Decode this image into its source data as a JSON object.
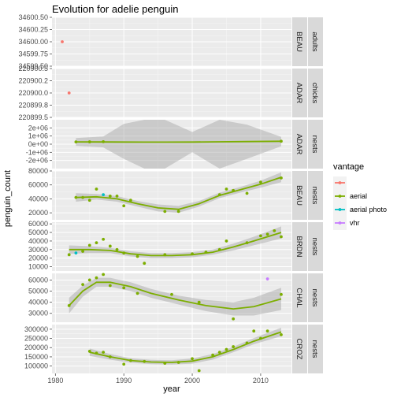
{
  "chart_data": {
    "type": "scatter",
    "title": "Evolution for adelie penguin",
    "xlabel": "year",
    "ylabel": "penguin_count",
    "xlim": [
      1979.5,
      2014.5
    ],
    "x_ticks": [
      1980,
      1990,
      2000,
      2010
    ],
    "legend": {
      "title": "vantage",
      "placement": "right",
      "entries": [
        {
          "label": "",
          "color": "#F8766D"
        },
        {
          "label": "aerial",
          "color": "#7CAE00"
        },
        {
          "label": "aerial photo",
          "color": "#00BFC4"
        },
        {
          "label": "vhr",
          "color": "#C77CFF"
        }
      ]
    },
    "panels": [
      {
        "site": "BEAU",
        "count_type": "adults",
        "ylim": [
          34599.5,
          34600.5
        ],
        "y_ticks": [
          "34599.50",
          "34599.75",
          "34600.00",
          "34600.25",
          "34600.50"
        ],
        "y_tick_values": [
          34599.5,
          34599.75,
          34600.0,
          34600.25,
          34600.5
        ],
        "points": [
          {
            "x": 1981,
            "y": 34600,
            "vantage": "NA"
          }
        ],
        "smooth": null
      },
      {
        "site": "ADAR",
        "count_type": "chicks",
        "ylim": [
          220899.5,
          220900.5
        ],
        "y_ticks": [
          "220899.5",
          "220899.8",
          "220900.0",
          "220900.2",
          "220900.5"
        ],
        "y_tick_values": [
          220899.5,
          220899.75,
          220900.0,
          220900.25,
          220900.5
        ],
        "points": [
          {
            "x": 1982,
            "y": 220900,
            "vantage": "NA"
          }
        ],
        "smooth": null
      },
      {
        "site": "ADAR",
        "count_type": "nests",
        "ylim": [
          -3000000,
          3000000
        ],
        "y_ticks": [
          "-2e+06",
          "-1e+06",
          "0e+00",
          "1e+06",
          "2e+06"
        ],
        "y_tick_values": [
          -2000000,
          -1000000,
          0,
          1000000,
          2000000
        ],
        "points": [
          {
            "x": 1983,
            "y": 280000,
            "vantage": "aerial"
          },
          {
            "x": 1985,
            "y": 282000,
            "vantage": "aerial"
          },
          {
            "x": 1987,
            "y": 300000,
            "vantage": "aerial"
          },
          {
            "x": 2013,
            "y": 360000,
            "vantage": "aerial"
          }
        ],
        "smooth": {
          "x": [
            1983,
            1987,
            1990,
            1993,
            1996,
            2000,
            2004,
            2008,
            2013
          ],
          "y": [
            280000,
            275000,
            265000,
            255000,
            250000,
            265000,
            290000,
            320000,
            360000
          ],
          "lo": [
            -200000,
            -400000,
            -1800000,
            -3000000,
            -3000000,
            -1000000,
            -3000000,
            -1800000,
            -250000
          ],
          "hi": [
            750000,
            950000,
            2500000,
            3000000,
            3000000,
            1500000,
            3000000,
            2400000,
            900000
          ]
        }
      },
      {
        "site": "BEAU",
        "count_type": "nests",
        "ylim": [
          10000,
          80000
        ],
        "y_ticks": [
          "20000",
          "40000",
          "60000",
          "80000"
        ],
        "y_tick_values": [
          20000,
          40000,
          60000,
          80000
        ],
        "points": [
          {
            "x": 1983,
            "y": 42000,
            "vantage": "aerial"
          },
          {
            "x": 1984,
            "y": 42000,
            "vantage": "aerial"
          },
          {
            "x": 1985,
            "y": 38000,
            "vantage": "aerial"
          },
          {
            "x": 1986,
            "y": 54000,
            "vantage": "aerial"
          },
          {
            "x": 1987,
            "y": 46000,
            "vantage": "aerial photo"
          },
          {
            "x": 1988,
            "y": 44000,
            "vantage": "aerial"
          },
          {
            "x": 1989,
            "y": 44000,
            "vantage": "aerial"
          },
          {
            "x": 1990,
            "y": 30000,
            "vantage": "aerial"
          },
          {
            "x": 1991,
            "y": 38000,
            "vantage": "aerial"
          },
          {
            "x": 1996,
            "y": 22000,
            "vantage": "aerial"
          },
          {
            "x": 1998,
            "y": 22000,
            "vantage": "aerial"
          },
          {
            "x": 2004,
            "y": 46000,
            "vantage": "aerial"
          },
          {
            "x": 2005,
            "y": 54000,
            "vantage": "aerial"
          },
          {
            "x": 2006,
            "y": 52000,
            "vantage": "aerial"
          },
          {
            "x": 2008,
            "y": 48000,
            "vantage": "aerial"
          },
          {
            "x": 2010,
            "y": 64000,
            "vantage": "aerial"
          },
          {
            "x": 2013,
            "y": 70000,
            "vantage": "aerial"
          }
        ],
        "smooth": {
          "x": [
            1983,
            1986,
            1989,
            1992,
            1995,
            1998,
            2001,
            2004,
            2007,
            2010,
            2013
          ],
          "y": [
            42000,
            43000,
            40000,
            33000,
            27000,
            25000,
            33000,
            45000,
            53000,
            61000,
            71000
          ],
          "lo": [
            36000,
            39000,
            36000,
            29000,
            22000,
            20000,
            29000,
            41000,
            49000,
            56000,
            64000
          ],
          "hi": [
            48000,
            47000,
            44000,
            37000,
            32000,
            30000,
            37000,
            49000,
            57000,
            66000,
            78000
          ]
        }
      },
      {
        "site": "BRDN",
        "count_type": "nests",
        "ylim": [
          5000,
          62000
        ],
        "y_ticks": [
          "10000",
          "20000",
          "30000",
          "40000",
          "50000",
          "60000"
        ],
        "y_tick_values": [
          10000,
          20000,
          30000,
          40000,
          50000,
          60000
        ],
        "points": [
          {
            "x": 1982,
            "y": 24000,
            "vantage": "aerial"
          },
          {
            "x": 1983,
            "y": 26000,
            "vantage": "aerial photo"
          },
          {
            "x": 1984,
            "y": 28000,
            "vantage": "aerial"
          },
          {
            "x": 1985,
            "y": 35000,
            "vantage": "aerial"
          },
          {
            "x": 1986,
            "y": 38000,
            "vantage": "aerial"
          },
          {
            "x": 1987,
            "y": 42000,
            "vantage": "aerial"
          },
          {
            "x": 1988,
            "y": 34000,
            "vantage": "aerial"
          },
          {
            "x": 1989,
            "y": 30000,
            "vantage": "aerial"
          },
          {
            "x": 1990,
            "y": 26000,
            "vantage": "aerial"
          },
          {
            "x": 1992,
            "y": 22000,
            "vantage": "aerial"
          },
          {
            "x": 1993,
            "y": 14000,
            "vantage": "aerial"
          },
          {
            "x": 1996,
            "y": 24000,
            "vantage": "aerial"
          },
          {
            "x": 2000,
            "y": 25000,
            "vantage": "aerial"
          },
          {
            "x": 2002,
            "y": 27000,
            "vantage": "aerial"
          },
          {
            "x": 2004,
            "y": 30000,
            "vantage": "aerial"
          },
          {
            "x": 2005,
            "y": 40000,
            "vantage": "aerial"
          },
          {
            "x": 2008,
            "y": 38000,
            "vantage": "aerial"
          },
          {
            "x": 2010,
            "y": 46000,
            "vantage": "aerial"
          },
          {
            "x": 2011,
            "y": 48000,
            "vantage": "aerial"
          },
          {
            "x": 2012,
            "y": 52000,
            "vantage": "aerial"
          },
          {
            "x": 2013,
            "y": 45000,
            "vantage": "aerial"
          }
        ],
        "smooth": {
          "x": [
            1982,
            1985,
            1988,
            1991,
            1994,
            1997,
            2000,
            2003,
            2006,
            2009,
            2013
          ],
          "y": [
            30000,
            30000,
            29000,
            25000,
            23000,
            23000,
            24000,
            27000,
            33000,
            40000,
            50000
          ],
          "lo": [
            25000,
            26000,
            26000,
            22000,
            20000,
            20000,
            21000,
            24000,
            29000,
            35000,
            43000
          ],
          "hi": [
            35000,
            34000,
            32000,
            28000,
            26000,
            26000,
            27000,
            30000,
            37000,
            45000,
            57000
          ]
        }
      },
      {
        "site": "CHAL",
        "count_type": "nests",
        "ylim": [
          22000,
          66000
        ],
        "y_ticks": [
          "30000",
          "40000",
          "50000",
          "60000"
        ],
        "y_tick_values": [
          30000,
          40000,
          50000,
          60000
        ],
        "points": [
          {
            "x": 1982,
            "y": 37000,
            "vantage": "aerial"
          },
          {
            "x": 1984,
            "y": 56000,
            "vantage": "aerial"
          },
          {
            "x": 1985,
            "y": 60000,
            "vantage": "aerial"
          },
          {
            "x": 1986,
            "y": 62000,
            "vantage": "aerial"
          },
          {
            "x": 1987,
            "y": 65000,
            "vantage": "aerial"
          },
          {
            "x": 1988,
            "y": 55000,
            "vantage": "aerial"
          },
          {
            "x": 1990,
            "y": 53000,
            "vantage": "aerial"
          },
          {
            "x": 1992,
            "y": 48000,
            "vantage": "aerial"
          },
          {
            "x": 1997,
            "y": 47000,
            "vantage": "aerial"
          },
          {
            "x": 2001,
            "y": 40000,
            "vantage": "aerial"
          },
          {
            "x": 2006,
            "y": 25000,
            "vantage": "aerial"
          },
          {
            "x": 2011,
            "y": 61000,
            "vantage": "vhr"
          },
          {
            "x": 2013,
            "y": 47000,
            "vantage": "aerial"
          }
        ],
        "smooth": {
          "x": [
            1982,
            1984,
            1986,
            1988,
            1991,
            1994,
            1998,
            2002,
            2006,
            2009,
            2013
          ],
          "y": [
            37000,
            50000,
            58000,
            58000,
            54000,
            48000,
            42000,
            37000,
            34000,
            36000,
            43000
          ],
          "lo": [
            30000,
            45000,
            54000,
            54000,
            50000,
            44000,
            38000,
            32000,
            28000,
            28000,
            33000
          ],
          "hi": [
            44000,
            55000,
            62000,
            62000,
            58000,
            52000,
            46000,
            42000,
            40000,
            44000,
            53000
          ]
        }
      },
      {
        "site": "CROZ",
        "count_type": "nests",
        "ylim": [
          60000,
          325000
        ],
        "y_ticks": [
          "100000",
          "150000",
          "200000",
          "250000",
          "300000"
        ],
        "y_tick_values": [
          100000,
          150000,
          200000,
          250000,
          300000
        ],
        "points": [
          {
            "x": 1985,
            "y": 180000,
            "vantage": "aerial"
          },
          {
            "x": 1986,
            "y": 170000,
            "vantage": "aerial"
          },
          {
            "x": 1987,
            "y": 175000,
            "vantage": "aerial"
          },
          {
            "x": 1988,
            "y": 150000,
            "vantage": "aerial"
          },
          {
            "x": 1990,
            "y": 110000,
            "vantage": "aerial"
          },
          {
            "x": 1991,
            "y": 130000,
            "vantage": "aerial"
          },
          {
            "x": 1993,
            "y": 125000,
            "vantage": "aerial"
          },
          {
            "x": 1996,
            "y": 115000,
            "vantage": "aerial"
          },
          {
            "x": 1998,
            "y": 120000,
            "vantage": "aerial"
          },
          {
            "x": 2000,
            "y": 140000,
            "vantage": "aerial"
          },
          {
            "x": 2001,
            "y": 75000,
            "vantage": "aerial"
          },
          {
            "x": 2003,
            "y": 160000,
            "vantage": "aerial"
          },
          {
            "x": 2004,
            "y": 175000,
            "vantage": "aerial"
          },
          {
            "x": 2005,
            "y": 190000,
            "vantage": "aerial"
          },
          {
            "x": 2006,
            "y": 205000,
            "vantage": "aerial"
          },
          {
            "x": 2008,
            "y": 225000,
            "vantage": "aerial"
          },
          {
            "x": 2009,
            "y": 290000,
            "vantage": "aerial"
          },
          {
            "x": 2010,
            "y": 250000,
            "vantage": "aerial"
          },
          {
            "x": 2011,
            "y": 290000,
            "vantage": "aerial"
          },
          {
            "x": 2013,
            "y": 270000,
            "vantage": "aerial"
          }
        ],
        "smooth": {
          "x": [
            1985,
            1988,
            1991,
            1994,
            1997,
            2000,
            2003,
            2006,
            2009,
            2013
          ],
          "y": [
            175000,
            150000,
            130000,
            122000,
            120000,
            127000,
            150000,
            190000,
            235000,
            285000
          ],
          "lo": [
            155000,
            135000,
            118000,
            110000,
            108000,
            113000,
            135000,
            175000,
            218000,
            262000
          ],
          "hi": [
            195000,
            165000,
            142000,
            134000,
            132000,
            141000,
            165000,
            205000,
            252000,
            308000
          ]
        }
      }
    ]
  }
}
